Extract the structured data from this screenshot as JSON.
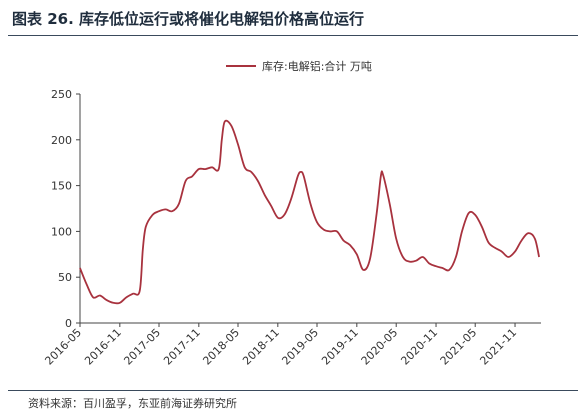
{
  "figure": {
    "title": "图表 26. 库存低位运行或将催化电解铝价格高位运行",
    "source": "资料来源：百川盈孚，东亚前海证券研究所"
  },
  "colors": {
    "series": "#a8323e",
    "axis": "#444444",
    "rule": "#3a4a5c"
  },
  "chart_data": {
    "type": "line",
    "title": "",
    "xlabel": "",
    "ylabel": "",
    "ylim": [
      0,
      250
    ],
    "yticks": [
      0,
      50,
      100,
      150,
      200,
      250
    ],
    "xlim": [
      "2016-05",
      "2022-03"
    ],
    "xticks": [
      "2016-05",
      "2016-11",
      "2017-05",
      "2017-11",
      "2018-05",
      "2018-11",
      "2019-05",
      "2019-11",
      "2020-05",
      "2020-11",
      "2021-05",
      "2021-11"
    ],
    "grid": false,
    "legend": {
      "position": "top-center"
    },
    "series": [
      {
        "name": "库存:电解铝:合计 万吨",
        "x": [
          "2016-05-01",
          "2016-06-01",
          "2016-07-01",
          "2016-08-01",
          "2016-09-01",
          "2016-10-01",
          "2016-11-01",
          "2016-12-01",
          "2017-01-01",
          "2017-02-01",
          "2017-02-15",
          "2017-03-01",
          "2017-04-01",
          "2017-05-01",
          "2017-06-01",
          "2017-07-01",
          "2017-08-01",
          "2017-09-01",
          "2017-10-01",
          "2017-11-01",
          "2017-12-01",
          "2018-01-01",
          "2018-02-01",
          "2018-02-15",
          "2018-03-01",
          "2018-04-01",
          "2018-05-01",
          "2018-06-01",
          "2018-07-01",
          "2018-08-01",
          "2018-09-01",
          "2018-10-01",
          "2018-11-01",
          "2018-12-01",
          "2019-01-01",
          "2019-02-01",
          "2019-02-15",
          "2019-03-01",
          "2019-04-01",
          "2019-05-01",
          "2019-06-01",
          "2019-07-01",
          "2019-08-01",
          "2019-09-01",
          "2019-10-01",
          "2019-11-01",
          "2019-12-01",
          "2020-01-01",
          "2020-02-01",
          "2020-02-20",
          "2020-03-01",
          "2020-04-01",
          "2020-05-01",
          "2020-06-01",
          "2020-07-01",
          "2020-08-01",
          "2020-09-01",
          "2020-10-01",
          "2020-11-01",
          "2020-12-01",
          "2021-01-01",
          "2021-02-01",
          "2021-03-01",
          "2021-04-01",
          "2021-05-01",
          "2021-06-01",
          "2021-07-01",
          "2021-08-01",
          "2021-09-01",
          "2021-10-01",
          "2021-11-01",
          "2021-12-01",
          "2022-01-01",
          "2022-02-01",
          "2022-02-20"
        ],
        "y": [
          60,
          42,
          28,
          30,
          25,
          22,
          22,
          28,
          32,
          35,
          80,
          105,
          118,
          122,
          124,
          122,
          130,
          155,
          160,
          168,
          168,
          170,
          168,
          200,
          220,
          215,
          195,
          170,
          165,
          155,
          140,
          128,
          115,
          118,
          135,
          160,
          165,
          160,
          130,
          110,
          102,
          100,
          100,
          90,
          85,
          75,
          58,
          70,
          120,
          160,
          162,
          130,
          92,
          72,
          67,
          68,
          72,
          65,
          62,
          60,
          58,
          72,
          100,
          120,
          118,
          105,
          88,
          82,
          78,
          72,
          78,
          90,
          98,
          92,
          72
        ]
      }
    ]
  }
}
